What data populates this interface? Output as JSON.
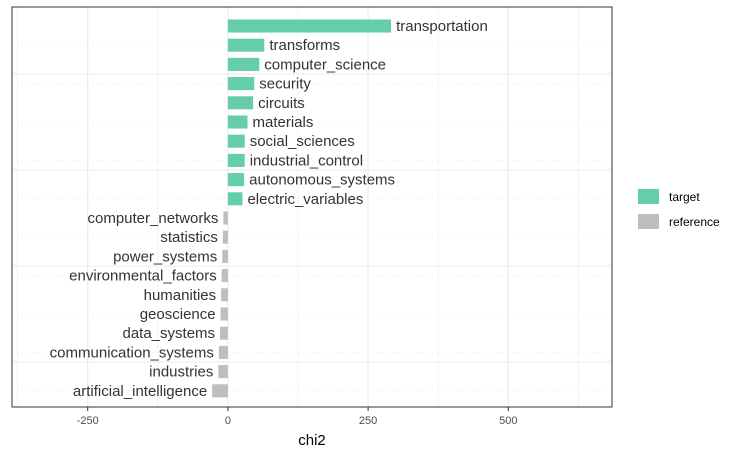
{
  "chart_data": {
    "type": "bar",
    "orientation": "horizontal",
    "xlabel": "chi2",
    "ylabel": "",
    "title": "",
    "xlim": [
      -385,
      685
    ],
    "xticks": [
      -250,
      0,
      250,
      500
    ],
    "grid": true,
    "legend_position": "right",
    "colors": {
      "target": "#66cdaa",
      "reference": "#bebebe"
    },
    "legend": [
      {
        "key": "target",
        "label": "target"
      },
      {
        "key": "reference",
        "label": "reference"
      }
    ],
    "bars": [
      {
        "label": "transportation",
        "value": 291,
        "group": "target"
      },
      {
        "label": "transforms",
        "value": 65,
        "group": "target"
      },
      {
        "label": "computer_science",
        "value": 56,
        "group": "target"
      },
      {
        "label": "security",
        "value": 47,
        "group": "target"
      },
      {
        "label": "circuits",
        "value": 45,
        "group": "target"
      },
      {
        "label": "materials",
        "value": 35,
        "group": "target"
      },
      {
        "label": "social_sciences",
        "value": 30,
        "group": "target"
      },
      {
        "label": "industrial_control",
        "value": 30,
        "group": "target"
      },
      {
        "label": "autonomous_systems",
        "value": 29,
        "group": "target"
      },
      {
        "label": "electric_variables",
        "value": 26,
        "group": "target"
      },
      {
        "label": "computer_networks",
        "value": -8,
        "group": "reference"
      },
      {
        "label": "statistics",
        "value": -9,
        "group": "reference"
      },
      {
        "label": "power_systems",
        "value": -10,
        "group": "reference"
      },
      {
        "label": "environmental_factors",
        "value": -11,
        "group": "reference"
      },
      {
        "label": "humanities",
        "value": -12,
        "group": "reference"
      },
      {
        "label": "geoscience",
        "value": -13,
        "group": "reference"
      },
      {
        "label": "data_systems",
        "value": -14,
        "group": "reference"
      },
      {
        "label": "communication_systems",
        "value": -16,
        "group": "reference"
      },
      {
        "label": "industries",
        "value": -17,
        "group": "reference"
      },
      {
        "label": "artificial_intelligence",
        "value": -28,
        "group": "reference"
      }
    ]
  }
}
